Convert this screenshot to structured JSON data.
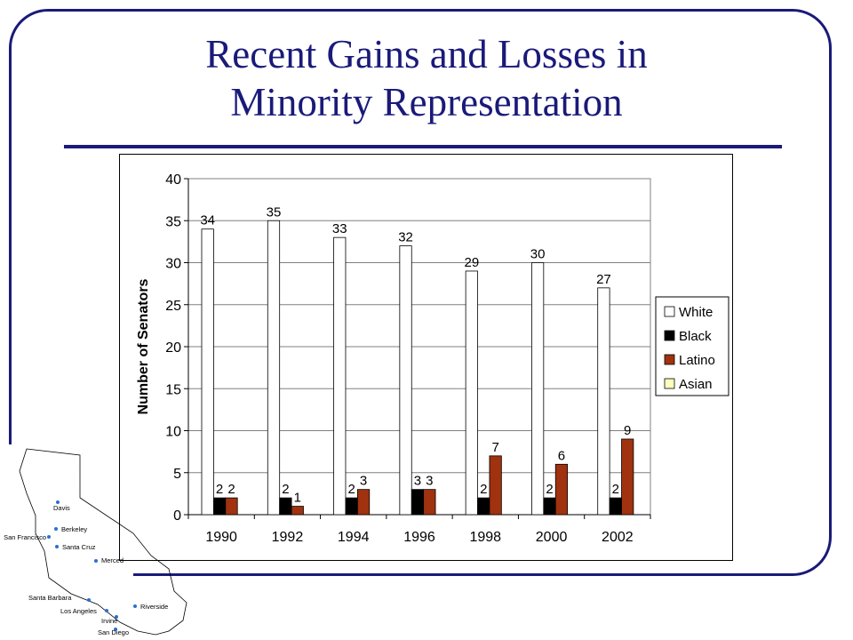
{
  "slide": {
    "title_line1": "Recent Gains and Losses in",
    "title_line2": "Minority Representation"
  },
  "colors": {
    "accent": "#1a1a7a",
    "white_series": "#ffffff",
    "black_series": "#000000",
    "latino_series": "#a0320f",
    "asian_series": "#ffffc0"
  },
  "chart_data": {
    "type": "bar",
    "title": "",
    "xlabel": "",
    "ylabel": "Number of Senators",
    "ylim": [
      0,
      40
    ],
    "yticks": [
      0,
      5,
      10,
      15,
      20,
      25,
      30,
      35,
      40
    ],
    "categories": [
      "1990",
      "1992",
      "1994",
      "1996",
      "1998",
      "2000",
      "2002"
    ],
    "grid": "horizontal",
    "legend_position": "right",
    "series": [
      {
        "name": "White",
        "values": [
          34,
          35,
          33,
          32,
          29,
          30,
          27
        ],
        "color": "#ffffff"
      },
      {
        "name": "Black",
        "values": [
          2,
          2,
          2,
          3,
          2,
          2,
          2
        ],
        "color": "#000000"
      },
      {
        "name": "Latino",
        "values": [
          2,
          1,
          3,
          3,
          7,
          6,
          9
        ],
        "color": "#a0320f"
      },
      {
        "name": "Asian",
        "values": [
          0,
          0,
          0,
          0,
          0,
          0,
          0
        ],
        "color": "#ffffc0"
      }
    ]
  },
  "map": {
    "cities": [
      "Davis",
      "Berkeley",
      "San Francisco",
      "Santa Cruz",
      "Merced",
      "Santa Barbara",
      "Los Angeles",
      "Irvine",
      "San Diego",
      "Riverside"
    ]
  }
}
